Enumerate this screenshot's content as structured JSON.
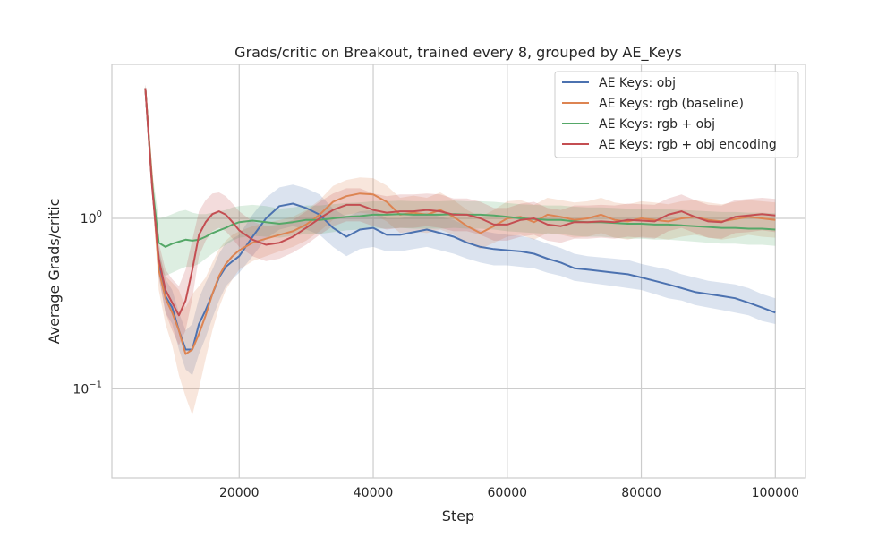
{
  "chart_data": {
    "type": "line",
    "title": "Grads/critic on Breakout, trained every 8, grouped by AE_Keys",
    "xlabel": "Step",
    "ylabel": "Average Grads/critic",
    "xlim": [
      1000,
      104500
    ],
    "ylim": [
      0.03,
      8.0
    ],
    "yscale": "log",
    "grid": true,
    "legend_position": "top-right",
    "x_ticks": [
      {
        "value": 20000,
        "label": "20000"
      },
      {
        "value": 40000,
        "label": "40000"
      },
      {
        "value": 60000,
        "label": "60000"
      },
      {
        "value": 80000,
        "label": "80000"
      },
      {
        "value": 100000,
        "label": "100000"
      }
    ],
    "y_ticks": [
      {
        "value": 1.0,
        "base": "10",
        "exp": "0"
      },
      {
        "value": 0.1,
        "base": "10",
        "exp": "−1"
      }
    ],
    "x": [
      6000,
      7000,
      8000,
      9000,
      10000,
      11000,
      12000,
      13000,
      14000,
      15000,
      16000,
      17000,
      18000,
      19000,
      20000,
      22000,
      24000,
      26000,
      28000,
      30000,
      32000,
      34000,
      36000,
      38000,
      40000,
      42000,
      44000,
      46000,
      48000,
      50000,
      52000,
      54000,
      56000,
      58000,
      60000,
      62000,
      64000,
      66000,
      68000,
      70000,
      72000,
      74000,
      76000,
      78000,
      80000,
      82000,
      84000,
      86000,
      88000,
      90000,
      92000,
      94000,
      96000,
      98000,
      100000
    ],
    "series": [
      {
        "name": "AE Keys: obj",
        "color": "#4c72b0",
        "values": [
          5.8,
          1.6,
          0.55,
          0.35,
          0.3,
          0.22,
          0.17,
          0.17,
          0.24,
          0.29,
          0.36,
          0.45,
          0.52,
          0.56,
          0.6,
          0.78,
          1.0,
          1.18,
          1.22,
          1.15,
          1.05,
          0.88,
          0.78,
          0.86,
          0.88,
          0.8,
          0.8,
          0.83,
          0.86,
          0.82,
          0.78,
          0.72,
          0.68,
          0.66,
          0.65,
          0.64,
          0.62,
          0.58,
          0.55,
          0.51,
          0.5,
          0.49,
          0.48,
          0.47,
          0.45,
          0.43,
          0.41,
          0.39,
          0.37,
          0.36,
          0.35,
          0.34,
          0.32,
          0.3,
          0.28
        ],
        "lower": [
          5.5,
          1.4,
          0.45,
          0.28,
          0.24,
          0.17,
          0.13,
          0.12,
          0.16,
          0.2,
          0.26,
          0.33,
          0.4,
          0.44,
          0.48,
          0.6,
          0.76,
          0.86,
          0.9,
          0.86,
          0.8,
          0.68,
          0.6,
          0.66,
          0.68,
          0.64,
          0.64,
          0.66,
          0.68,
          0.65,
          0.62,
          0.58,
          0.55,
          0.53,
          0.53,
          0.52,
          0.51,
          0.48,
          0.46,
          0.43,
          0.42,
          0.41,
          0.4,
          0.39,
          0.38,
          0.36,
          0.34,
          0.33,
          0.31,
          0.3,
          0.29,
          0.28,
          0.27,
          0.25,
          0.24
        ],
        "upper": [
          6.1,
          1.9,
          0.66,
          0.44,
          0.38,
          0.28,
          0.22,
          0.24,
          0.34,
          0.42,
          0.5,
          0.62,
          0.72,
          0.76,
          0.8,
          1.05,
          1.32,
          1.52,
          1.58,
          1.5,
          1.38,
          1.14,
          1.02,
          1.1,
          1.12,
          1.0,
          1.0,
          1.04,
          1.08,
          1.02,
          0.98,
          0.9,
          0.85,
          0.82,
          0.8,
          0.79,
          0.76,
          0.71,
          0.67,
          0.62,
          0.6,
          0.59,
          0.58,
          0.57,
          0.54,
          0.52,
          0.5,
          0.47,
          0.45,
          0.43,
          0.42,
          0.41,
          0.39,
          0.36,
          0.34
        ]
      },
      {
        "name": "AE Keys: rgb (baseline)",
        "color": "#dd8452",
        "values": [
          5.8,
          1.7,
          0.5,
          0.34,
          0.28,
          0.22,
          0.16,
          0.17,
          0.21,
          0.27,
          0.36,
          0.46,
          0.54,
          0.6,
          0.65,
          0.72,
          0.76,
          0.8,
          0.84,
          0.92,
          1.05,
          1.25,
          1.35,
          1.4,
          1.38,
          1.25,
          1.05,
          1.08,
          1.05,
          1.12,
          1.02,
          0.9,
          0.82,
          0.9,
          1.0,
          1.02,
          0.95,
          1.05,
          1.02,
          0.98,
          1.0,
          1.05,
          0.98,
          0.96,
          1.0,
          0.98,
          0.96,
          1.0,
          1.02,
          0.98,
          0.96,
          0.99,
          1.02,
          1.0,
          0.98
        ],
        "lower": [
          5.5,
          1.4,
          0.38,
          0.24,
          0.18,
          0.12,
          0.09,
          0.07,
          0.1,
          0.15,
          0.22,
          0.3,
          0.38,
          0.44,
          0.5,
          0.56,
          0.6,
          0.64,
          0.68,
          0.74,
          0.84,
          0.98,
          1.05,
          1.08,
          1.06,
          0.96,
          0.82,
          0.84,
          0.82,
          0.86,
          0.8,
          0.72,
          0.66,
          0.72,
          0.78,
          0.8,
          0.75,
          0.82,
          0.8,
          0.77,
          0.78,
          0.82,
          0.77,
          0.75,
          0.78,
          0.77,
          0.75,
          0.78,
          0.8,
          0.77,
          0.75,
          0.77,
          0.8,
          0.78,
          0.77
        ],
        "upper": [
          6.1,
          2.0,
          0.64,
          0.46,
          0.42,
          0.38,
          0.3,
          0.36,
          0.4,
          0.45,
          0.55,
          0.66,
          0.74,
          0.8,
          0.84,
          0.9,
          0.94,
          0.98,
          1.02,
          1.12,
          1.28,
          1.55,
          1.68,
          1.74,
          1.72,
          1.56,
          1.32,
          1.36,
          1.32,
          1.42,
          1.28,
          1.12,
          1.02,
          1.12,
          1.26,
          1.28,
          1.2,
          1.32,
          1.28,
          1.24,
          1.26,
          1.32,
          1.24,
          1.21,
          1.26,
          1.24,
          1.21,
          1.26,
          1.28,
          1.24,
          1.21,
          1.25,
          1.28,
          1.26,
          1.24
        ]
      },
      {
        "name": "AE Keys: rgb + obj",
        "color": "#55a868",
        "values": [
          5.8,
          1.6,
          0.72,
          0.68,
          0.71,
          0.73,
          0.75,
          0.74,
          0.75,
          0.78,
          0.82,
          0.85,
          0.88,
          0.92,
          0.95,
          0.97,
          0.95,
          0.93,
          0.95,
          0.98,
          0.98,
          1.0,
          1.02,
          1.03,
          1.05,
          1.05,
          1.06,
          1.05,
          1.05,
          1.05,
          1.06,
          1.05,
          1.05,
          1.04,
          1.02,
          1.0,
          0.99,
          0.98,
          0.98,
          0.96,
          0.95,
          0.95,
          0.94,
          0.93,
          0.93,
          0.92,
          0.92,
          0.91,
          0.9,
          0.89,
          0.88,
          0.88,
          0.87,
          0.87,
          0.86
        ],
        "lower": [
          5.5,
          1.4,
          0.5,
          0.46,
          0.48,
          0.5,
          0.52,
          0.52,
          0.54,
          0.58,
          0.62,
          0.66,
          0.7,
          0.74,
          0.77,
          0.79,
          0.78,
          0.77,
          0.79,
          0.81,
          0.81,
          0.83,
          0.85,
          0.86,
          0.87,
          0.87,
          0.88,
          0.87,
          0.87,
          0.87,
          0.88,
          0.87,
          0.87,
          0.86,
          0.84,
          0.83,
          0.82,
          0.81,
          0.81,
          0.79,
          0.78,
          0.78,
          0.77,
          0.76,
          0.76,
          0.75,
          0.75,
          0.74,
          0.73,
          0.72,
          0.71,
          0.71,
          0.7,
          0.7,
          0.69
        ],
        "upper": [
          6.1,
          1.9,
          1.0,
          1.02,
          1.06,
          1.1,
          1.12,
          1.08,
          1.06,
          1.06,
          1.08,
          1.1,
          1.12,
          1.16,
          1.18,
          1.2,
          1.18,
          1.14,
          1.16,
          1.19,
          1.19,
          1.21,
          1.23,
          1.24,
          1.26,
          1.26,
          1.27,
          1.26,
          1.26,
          1.26,
          1.27,
          1.26,
          1.26,
          1.25,
          1.23,
          1.21,
          1.2,
          1.19,
          1.19,
          1.17,
          1.16,
          1.16,
          1.15,
          1.14,
          1.14,
          1.13,
          1.13,
          1.12,
          1.11,
          1.1,
          1.09,
          1.09,
          1.08,
          1.08,
          1.07
        ]
      },
      {
        "name": "AE Keys: rgb + obj encoding",
        "color": "#c44e52",
        "values": [
          5.8,
          1.55,
          0.58,
          0.38,
          0.32,
          0.27,
          0.33,
          0.5,
          0.8,
          0.95,
          1.06,
          1.1,
          1.05,
          0.95,
          0.85,
          0.75,
          0.7,
          0.72,
          0.78,
          0.88,
          1.0,
          1.12,
          1.2,
          1.2,
          1.12,
          1.08,
          1.1,
          1.1,
          1.12,
          1.1,
          1.05,
          1.05,
          1.0,
          0.92,
          0.92,
          0.98,
          1.0,
          0.92,
          0.9,
          0.95,
          0.95,
          0.96,
          0.95,
          0.98,
          0.97,
          0.96,
          1.05,
          1.1,
          1.02,
          0.96,
          0.95,
          1.02,
          1.04,
          1.06,
          1.04
        ],
        "lower": [
          5.5,
          1.35,
          0.46,
          0.28,
          0.22,
          0.18,
          0.22,
          0.34,
          0.6,
          0.74,
          0.84,
          0.88,
          0.84,
          0.76,
          0.68,
          0.6,
          0.56,
          0.58,
          0.63,
          0.7,
          0.8,
          0.9,
          0.96,
          0.96,
          0.9,
          0.86,
          0.88,
          0.88,
          0.9,
          0.88,
          0.84,
          0.84,
          0.8,
          0.74,
          0.74,
          0.78,
          0.8,
          0.74,
          0.72,
          0.76,
          0.76,
          0.77,
          0.76,
          0.78,
          0.77,
          0.76,
          0.84,
          0.88,
          0.82,
          0.77,
          0.76,
          0.82,
          0.83,
          0.85,
          0.83
        ],
        "upper": [
          6.1,
          1.8,
          0.72,
          0.5,
          0.44,
          0.4,
          0.5,
          0.75,
          1.1,
          1.28,
          1.4,
          1.42,
          1.35,
          1.22,
          1.1,
          0.96,
          0.9,
          0.92,
          0.98,
          1.1,
          1.25,
          1.4,
          1.5,
          1.5,
          1.4,
          1.35,
          1.38,
          1.38,
          1.4,
          1.38,
          1.31,
          1.31,
          1.25,
          1.15,
          1.15,
          1.22,
          1.25,
          1.15,
          1.12,
          1.19,
          1.19,
          1.2,
          1.19,
          1.22,
          1.21,
          1.2,
          1.31,
          1.38,
          1.28,
          1.2,
          1.19,
          1.28,
          1.3,
          1.32,
          1.3
        ]
      }
    ]
  }
}
